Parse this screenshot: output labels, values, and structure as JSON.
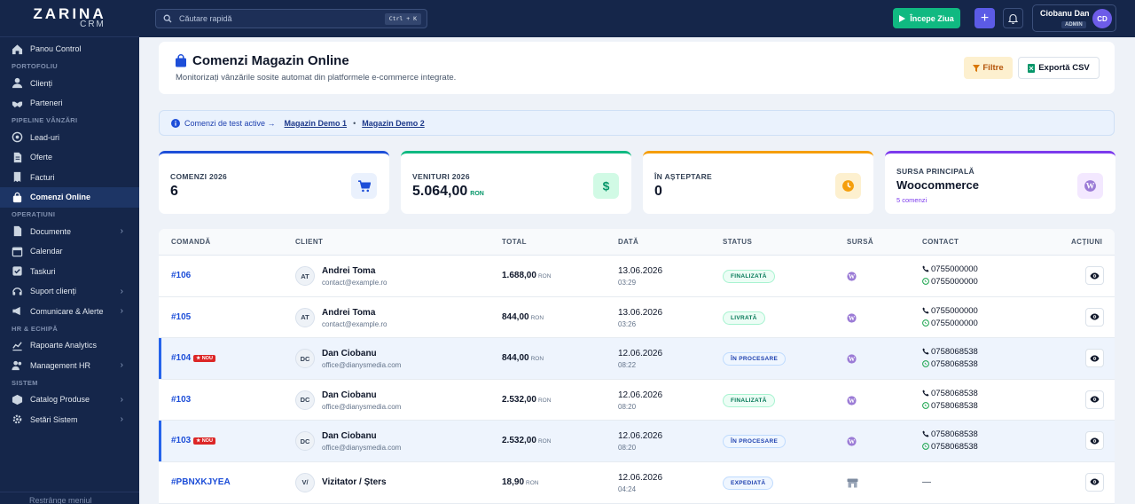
{
  "brand": {
    "name": "ZARINA",
    "sub": "CRM"
  },
  "colors": {
    "sidebar": "#15264a",
    "accent": "#1d4ed8",
    "success": "#10b981",
    "warning": "#f59e0b",
    "purple": "#7c3aed"
  },
  "sidebar": {
    "items": [
      {
        "label": "Panou Control",
        "icon": "home-icon"
      },
      {
        "section": "PORTOFOLIU"
      },
      {
        "label": "Clienți",
        "icon": "user-icon"
      },
      {
        "label": "Parteneri",
        "icon": "handshake-icon"
      },
      {
        "section": "PIPELINE VÂNZĂRI"
      },
      {
        "label": "Lead-uri",
        "icon": "target-icon"
      },
      {
        "label": "Oferte",
        "icon": "document-icon"
      },
      {
        "label": "Facturi",
        "icon": "invoice-icon"
      },
      {
        "label": "Comenzi Online",
        "icon": "shopping-bag-icon",
        "active": true
      },
      {
        "section": "OPERAȚIUNI"
      },
      {
        "label": "Documente",
        "icon": "file-icon",
        "chevron": true
      },
      {
        "label": "Calendar",
        "icon": "calendar-icon"
      },
      {
        "label": "Taskuri",
        "icon": "checkbox-icon"
      },
      {
        "label": "Suport clienți",
        "icon": "headset-icon",
        "chevron": true
      },
      {
        "label": "Comunicare & Alerte",
        "icon": "megaphone-icon",
        "chevron": true
      },
      {
        "section": "HR & ECHIPĂ"
      },
      {
        "label": "Rapoarte Analytics",
        "icon": "chart-line-icon"
      },
      {
        "label": "Management HR",
        "icon": "users-icon",
        "chevron": true
      },
      {
        "section": "SISTEM"
      },
      {
        "label": "Catalog Produse",
        "icon": "box-icon",
        "chevron": true
      },
      {
        "label": "Setări Sistem",
        "icon": "gear-icon",
        "chevron": true
      }
    ],
    "collapse_label": "Restrânge meniul"
  },
  "topbar": {
    "search_placeholder": "Căutare rapidă",
    "shortcut": "Ctrl + K",
    "start_label": "Începe Ziua",
    "user_name": "Ciobanu Dan",
    "user_role": "ADMIN",
    "user_initials": "CD"
  },
  "header": {
    "title": "Comenzi Magazin Online",
    "subtitle": "Monitorizați vânzările sosite automat din platformele e-commerce integrate.",
    "filter_label": "Filtre",
    "export_label": "Exportă CSV"
  },
  "info": {
    "text": "Comenzi de test active →",
    "link1": "Magazin Demo 1",
    "sep": "•",
    "link2": "Magazin Demo 2"
  },
  "stats": [
    {
      "label": "COMENZI 2026",
      "value": "6",
      "color": "#1d4ed8",
      "icon": "cart-icon",
      "icon_bg": "#eaf1fd"
    },
    {
      "label": "VENITURI 2026",
      "value": "5.064,00",
      "unit": "RON",
      "color": "#10b981",
      "icon": "dollar-icon",
      "icon_bg": "#d1fae5"
    },
    {
      "label": "ÎN AȘTEPTARE",
      "value": "0",
      "color": "#f59e0b",
      "icon": "clock-icon",
      "icon_bg": "#fdf0cf"
    },
    {
      "label": "SURSA PRINCIPALĂ",
      "value": "Woocommerce",
      "note": "5 comenzi",
      "color": "#7c3aed",
      "icon": "wordpress-icon",
      "icon_bg": "#f3e8ff"
    }
  ],
  "table": {
    "columns": [
      "COMANDĂ",
      "CLIENT",
      "TOTAL",
      "DATĂ",
      "STATUS",
      "SURSĂ",
      "CONTACT",
      "ACȚIUNI"
    ],
    "rows": [
      {
        "id": "#106",
        "nou": "",
        "initials": "AT",
        "name": "Andrei Toma",
        "email": "contact@example.ro",
        "total": "1.688,00",
        "unit": "RON",
        "date": "13.06.2026",
        "time": "03:29",
        "status": "FINALIZATĂ",
        "status_type": "green",
        "source": "wordpress",
        "phone1": "0755000000",
        "phone2": "0755000000",
        "highlight": false
      },
      {
        "id": "#105",
        "nou": "",
        "initials": "AT",
        "name": "Andrei Toma",
        "email": "contact@example.ro",
        "total": "844,00",
        "unit": "RON",
        "date": "13.06.2026",
        "time": "03:26",
        "status": "LIVRATĂ",
        "status_type": "green",
        "source": "wordpress",
        "phone1": "0755000000",
        "phone2": "0755000000",
        "highlight": false
      },
      {
        "id": "#104",
        "nou": "★ NOU",
        "initials": "DC",
        "name": "Dan Ciobanu",
        "email": "office@dianysmedia.com",
        "total": "844,00",
        "unit": "RON",
        "date": "12.06.2026",
        "time": "08:22",
        "status": "ÎN PROCESARE",
        "status_type": "blue",
        "source": "wordpress",
        "phone1": "0758068538",
        "phone2": "0758068538",
        "highlight": true
      },
      {
        "id": "#103",
        "nou": "",
        "initials": "DC",
        "name": "Dan Ciobanu",
        "email": "office@dianysmedia.com",
        "total": "2.532,00",
        "unit": "RON",
        "date": "12.06.2026",
        "time": "08:20",
        "status": "FINALIZATĂ",
        "status_type": "green",
        "source": "wordpress",
        "phone1": "0758068538",
        "phone2": "0758068538",
        "highlight": false
      },
      {
        "id": "#103",
        "nou": "★ NOU",
        "initials": "DC",
        "name": "Dan Ciobanu",
        "email": "office@dianysmedia.com",
        "total": "2.532,00",
        "unit": "RON",
        "date": "12.06.2026",
        "time": "08:20",
        "status": "ÎN PROCESARE",
        "status_type": "blue",
        "source": "wordpress",
        "phone1": "0758068538",
        "phone2": "0758068538",
        "highlight": true
      },
      {
        "id": "#PBNXKJYEA",
        "nou": "",
        "initials": "V/",
        "name": "Vizitator / Șters",
        "email": "",
        "total": "18,90",
        "unit": "RON",
        "date": "12.06.2026",
        "time": "04:24",
        "status": "EXPEDIATĂ",
        "status_type": "blue",
        "source": "store",
        "phone1": "",
        "phone2": "",
        "dash": "—",
        "highlight": false
      }
    ]
  }
}
